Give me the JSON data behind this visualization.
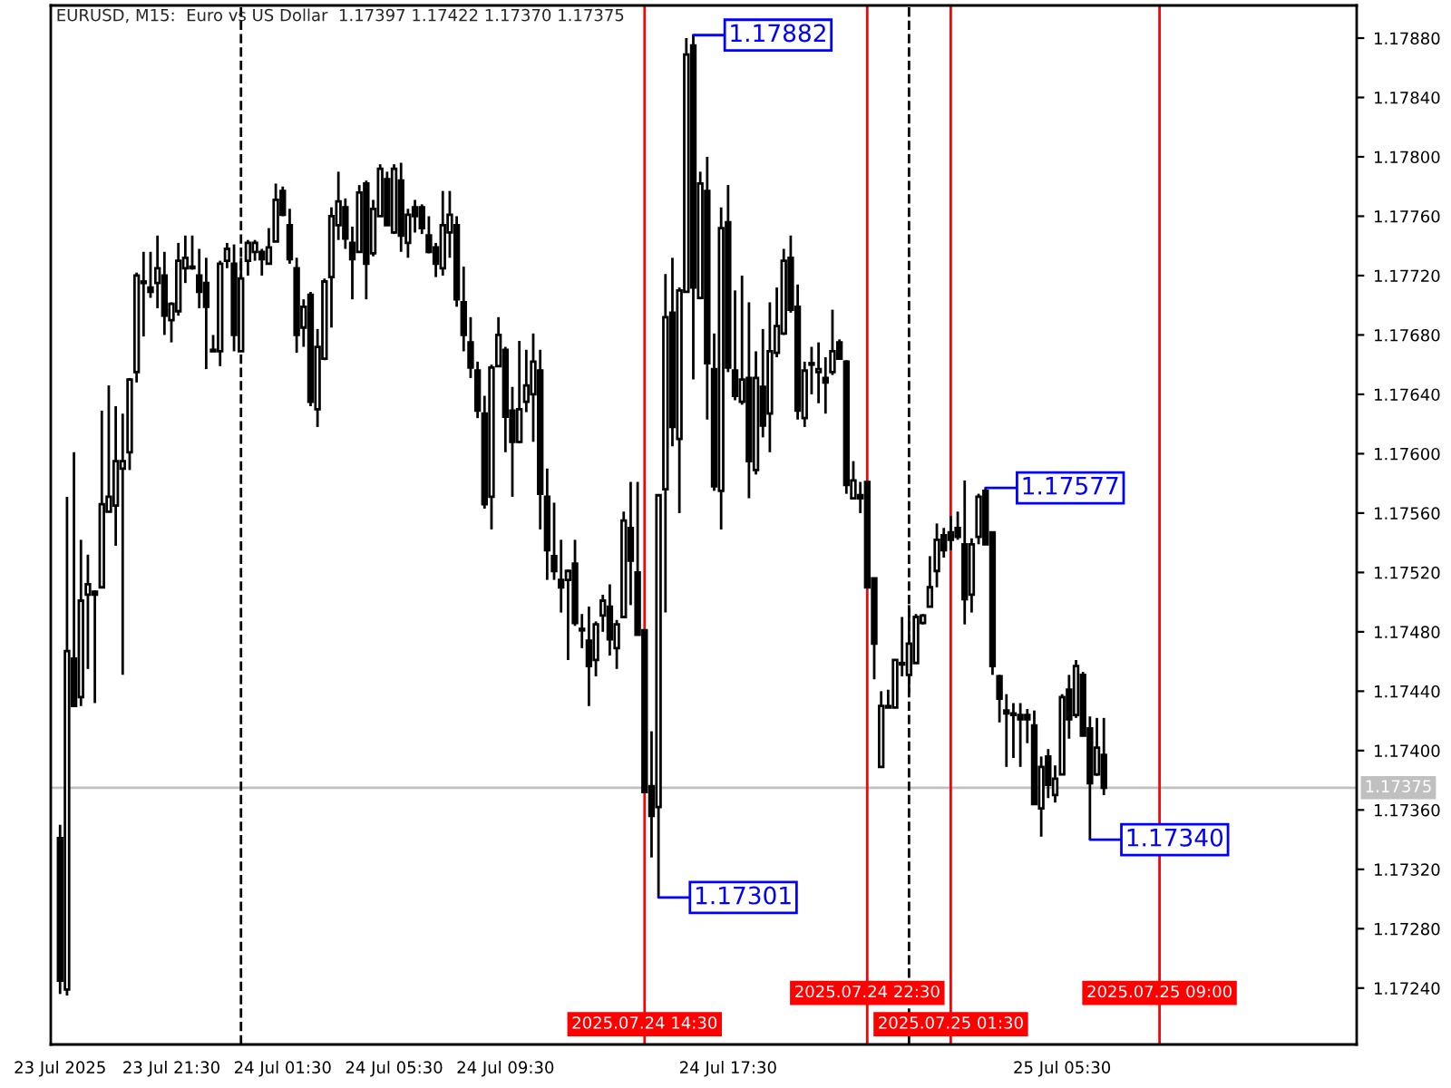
{
  "chart_data": {
    "type": "candlestick",
    "title": "EURUSD, M15:  Euro vs US Dollar  1.17397 1.17422 1.17370 1.17375",
    "color": "#000000",
    "x": [
      "2025-07-23T17:30",
      "2025-07-23T17:45",
      "2025-07-23T18:00",
      "2025-07-23T18:15",
      "2025-07-23T18:30",
      "2025-07-23T18:45",
      "2025-07-23T19:00",
      "2025-07-23T19:15",
      "2025-07-23T19:30",
      "2025-07-23T19:45",
      "2025-07-23T20:00",
      "2025-07-23T20:15",
      "2025-07-23T20:30",
      "2025-07-23T20:45",
      "2025-07-23T21:00",
      "2025-07-23T21:15",
      "2025-07-23T21:30",
      "2025-07-23T21:45",
      "2025-07-23T22:00",
      "2025-07-23T22:15",
      "2025-07-23T22:30",
      "2025-07-23T22:45",
      "2025-07-23T23:00",
      "2025-07-23T23:15",
      "2025-07-23T23:30",
      "2025-07-23T23:45",
      "2025-07-24T00:00",
      "2025-07-24T00:15",
      "2025-07-24T00:30",
      "2025-07-24T00:45",
      "2025-07-24T01:00",
      "2025-07-24T01:15",
      "2025-07-24T01:30",
      "2025-07-24T01:45",
      "2025-07-24T02:00",
      "2025-07-24T02:15",
      "2025-07-24T02:30",
      "2025-07-24T02:45",
      "2025-07-24T03:00",
      "2025-07-24T03:15",
      "2025-07-24T03:30",
      "2025-07-24T03:45",
      "2025-07-24T04:00",
      "2025-07-24T04:15",
      "2025-07-24T04:30",
      "2025-07-24T04:45",
      "2025-07-24T05:00",
      "2025-07-24T05:15",
      "2025-07-24T05:30",
      "2025-07-24T05:45",
      "2025-07-24T06:00",
      "2025-07-24T06:15",
      "2025-07-24T06:30",
      "2025-07-24T06:45",
      "2025-07-24T07:00",
      "2025-07-24T07:15",
      "2025-07-24T07:30",
      "2025-07-24T07:45",
      "2025-07-24T08:00",
      "2025-07-24T08:15",
      "2025-07-24T08:30",
      "2025-07-24T08:45",
      "2025-07-24T09:00",
      "2025-07-24T09:15",
      "2025-07-24T09:30",
      "2025-07-24T09:45",
      "2025-07-24T10:00",
      "2025-07-24T10:15",
      "2025-07-24T10:30",
      "2025-07-24T10:45",
      "2025-07-24T11:00",
      "2025-07-24T11:15",
      "2025-07-24T11:30",
      "2025-07-24T11:45",
      "2025-07-24T12:00",
      "2025-07-24T12:15",
      "2025-07-24T12:30",
      "2025-07-24T12:45",
      "2025-07-24T13:00",
      "2025-07-24T13:15",
      "2025-07-24T13:30",
      "2025-07-24T13:45",
      "2025-07-24T14:00",
      "2025-07-24T14:15",
      "2025-07-24T14:30",
      "2025-07-24T14:45",
      "2025-07-24T15:00",
      "2025-07-24T15:15",
      "2025-07-24T15:30",
      "2025-07-24T15:45",
      "2025-07-24T16:00",
      "2025-07-24T16:15",
      "2025-07-24T16:30",
      "2025-07-24T16:45",
      "2025-07-24T17:00",
      "2025-07-24T17:15",
      "2025-07-24T17:30",
      "2025-07-24T17:45",
      "2025-07-24T18:00",
      "2025-07-24T18:15",
      "2025-07-24T18:30",
      "2025-07-24T18:45",
      "2025-07-24T19:00",
      "2025-07-24T19:15",
      "2025-07-24T19:30",
      "2025-07-24T19:45",
      "2025-07-24T20:00",
      "2025-07-24T20:15",
      "2025-07-24T20:30",
      "2025-07-24T20:45",
      "2025-07-24T21:00",
      "2025-07-24T21:15",
      "2025-07-24T21:30",
      "2025-07-24T21:45",
      "2025-07-24T22:00",
      "2025-07-24T22:15",
      "2025-07-24T22:30",
      "2025-07-24T22:45",
      "2025-07-24T23:00",
      "2025-07-24T23:15",
      "2025-07-24T23:30",
      "2025-07-24T23:45",
      "2025-07-25T00:00",
      "2025-07-25T00:15",
      "2025-07-25T00:30",
      "2025-07-25T00:45",
      "2025-07-25T01:00",
      "2025-07-25T01:15",
      "2025-07-25T01:30",
      "2025-07-25T01:45",
      "2025-07-25T02:00",
      "2025-07-25T02:15",
      "2025-07-25T02:30",
      "2025-07-25T02:45",
      "2025-07-25T03:00",
      "2025-07-25T03:15",
      "2025-07-25T03:30",
      "2025-07-25T03:45",
      "2025-07-25T04:00",
      "2025-07-25T04:15",
      "2025-07-25T04:30",
      "2025-07-25T04:45",
      "2025-07-25T05:00",
      "2025-07-25T05:15",
      "2025-07-25T05:30",
      "2025-07-25T05:45",
      "2025-07-25T06:00",
      "2025-07-25T06:15",
      "2025-07-25T06:30",
      "2025-07-25T06:45",
      "2025-07-25T07:00"
    ],
    "ohlc": [
      [
        1.17341,
        1.1735,
        1.17236,
        1.17245
      ],
      [
        1.17239,
        1.17571,
        1.17235,
        1.17467
      ],
      [
        1.17462,
        1.17601,
        1.1743,
        1.1743
      ],
      [
        1.17436,
        1.17542,
        1.1743,
        1.17501
      ],
      [
        1.17505,
        1.17532,
        1.17455,
        1.17512
      ],
      [
        1.17507,
        1.17508,
        1.17432,
        1.17505
      ],
      [
        1.1751,
        1.17629,
        1.1751,
        1.17566
      ],
      [
        1.17561,
        1.17646,
        1.17561,
        1.17571
      ],
      [
        1.17565,
        1.17632,
        1.17538,
        1.17595
      ],
      [
        1.1759,
        1.17627,
        1.17451,
        1.17595
      ],
      [
        1.17601,
        1.17651,
        1.17589,
        1.1765
      ],
      [
        1.17655,
        1.17722,
        1.17648,
        1.1772
      ],
      [
        1.17716,
        1.17736,
        1.17679,
        1.17715
      ],
      [
        1.17712,
        1.17736,
        1.17705,
        1.17709
      ],
      [
        1.17715,
        1.17747,
        1.17698,
        1.17725
      ],
      [
        1.1772,
        1.17736,
        1.1768,
        1.17693
      ],
      [
        1.1769,
        1.17702,
        1.17675,
        1.17701
      ],
      [
        1.17696,
        1.17742,
        1.17693,
        1.1773
      ],
      [
        1.17725,
        1.17747,
        1.17715,
        1.17732
      ],
      [
        1.17725,
        1.17747,
        1.17724,
        1.17726
      ],
      [
        1.1772,
        1.17738,
        1.17698,
        1.17709
      ],
      [
        1.17715,
        1.17732,
        1.17657,
        1.17699
      ],
      [
        1.1767,
        1.1768,
        1.17669,
        1.17669
      ],
      [
        1.17669,
        1.1773,
        1.17659,
        1.17728
      ],
      [
        1.1773,
        1.17742,
        1.17725,
        1.17738
      ],
      [
        1.17728,
        1.17741,
        1.17669,
        1.1768
      ],
      [
        1.17669,
        1.17732,
        1.17669,
        1.17718
      ],
      [
        1.1773,
        1.17744,
        1.1772,
        1.17742
      ],
      [
        1.17736,
        1.17744,
        1.1773,
        1.17742
      ],
      [
        1.17736,
        1.17738,
        1.1772,
        1.17731
      ],
      [
        1.17728,
        1.17752,
        1.17728,
        1.17739
      ],
      [
        1.17743,
        1.17782,
        1.17743,
        1.17771
      ],
      [
        1.17777,
        1.1778,
        1.1776,
        1.17761
      ],
      [
        1.17754,
        1.17765,
        1.17728,
        1.17731
      ],
      [
        1.17725,
        1.17732,
        1.17668,
        1.1768
      ],
      [
        1.17685,
        1.17704,
        1.17672,
        1.17699
      ],
      [
        1.17707,
        1.17709,
        1.17632,
        1.17635
      ],
      [
        1.1763,
        1.17684,
        1.17618,
        1.17672
      ],
      [
        1.17664,
        1.17718,
        1.17663,
        1.17716
      ],
      [
        1.17719,
        1.17766,
        1.17685,
        1.1776
      ],
      [
        1.17754,
        1.1779,
        1.17744,
        1.1777
      ],
      [
        1.17766,
        1.17772,
        1.17738,
        1.17745
      ],
      [
        1.17742,
        1.17753,
        1.17704,
        1.17731
      ],
      [
        1.17736,
        1.17781,
        1.17736,
        1.17776
      ],
      [
        1.17782,
        1.17784,
        1.17704,
        1.17728
      ],
      [
        1.17735,
        1.17771,
        1.17733,
        1.17765
      ],
      [
        1.1776,
        1.17795,
        1.1776,
        1.17792
      ],
      [
        1.17785,
        1.1779,
        1.17754,
        1.17754
      ],
      [
        1.17749,
        1.17795,
        1.17748,
        1.17792
      ],
      [
        1.17784,
        1.17796,
        1.17736,
        1.17747
      ],
      [
        1.17742,
        1.17765,
        1.17732,
        1.17761
      ],
      [
        1.17766,
        1.17771,
        1.17749,
        1.1776
      ],
      [
        1.17766,
        1.17768,
        1.17748,
        1.17752
      ],
      [
        1.17747,
        1.1776,
        1.17735,
        1.17736
      ],
      [
        1.17739,
        1.17742,
        1.17719,
        1.17728
      ],
      [
        1.17725,
        1.17777,
        1.1772,
        1.17754
      ],
      [
        1.17749,
        1.17777,
        1.17732,
        1.17761
      ],
      [
        1.17754,
        1.1776,
        1.17699,
        1.17704
      ],
      [
        1.17702,
        1.17726,
        1.17669,
        1.1768
      ],
      [
        1.17675,
        1.17692,
        1.17651,
        1.17658
      ],
      [
        1.17656,
        1.17662,
        1.17624,
        1.17629
      ],
      [
        1.17627,
        1.17639,
        1.17563,
        1.17566
      ],
      [
        1.17571,
        1.1766,
        1.17549,
        1.17658
      ],
      [
        1.17659,
        1.17692,
        1.17659,
        1.1768
      ],
      [
        1.1767,
        1.17672,
        1.17601,
        1.17625
      ],
      [
        1.17629,
        1.17645,
        1.17571,
        1.17608
      ],
      [
        1.17608,
        1.17676,
        1.17607,
        1.1763
      ],
      [
        1.17635,
        1.1767,
        1.17628,
        1.17646
      ],
      [
        1.1764,
        1.17681,
        1.17608,
        1.17662
      ],
      [
        1.17656,
        1.1767,
        1.17549,
        1.17573
      ],
      [
        1.17571,
        1.1759,
        1.17515,
        1.17535
      ],
      [
        1.17531,
        1.17567,
        1.17515,
        1.17521
      ],
      [
        1.17515,
        1.17542,
        1.17493,
        1.1751
      ],
      [
        1.17515,
        1.17522,
        1.17461,
        1.17521
      ],
      [
        1.17526,
        1.17542,
        1.17484,
        1.17486
      ],
      [
        1.17482,
        1.17492,
        1.17469,
        1.17481
      ],
      [
        1.17474,
        1.17497,
        1.1743,
        1.17457
      ],
      [
        1.17461,
        1.17487,
        1.1745,
        1.17485
      ],
      [
        1.17491,
        1.17505,
        1.1748,
        1.17501
      ],
      [
        1.17497,
        1.17512,
        1.17464,
        1.17475
      ],
      [
        1.17469,
        1.17488,
        1.17455,
        1.17485
      ],
      [
        1.1749,
        1.17561,
        1.1749,
        1.17555
      ],
      [
        1.1755,
        1.17581,
        1.17498,
        1.17528
      ],
      [
        1.1752,
        1.17581,
        1.17478,
        1.17478
      ],
      [
        1.17481,
        1.17481,
        1.17372,
        1.17372
      ],
      [
        1.17376,
        1.17413,
        1.17328,
        1.17356
      ],
      [
        1.17362,
        1.17572,
        1.17301,
        1.17572
      ],
      [
        1.17576,
        1.17721,
        1.17493,
        1.17692
      ],
      [
        1.17695,
        1.17732,
        1.17605,
        1.17618
      ],
      [
        1.1761,
        1.17712,
        1.1756,
        1.1771
      ],
      [
        1.17709,
        1.1788,
        1.17709,
        1.17869
      ],
      [
        1.17875,
        1.17882,
        1.1765,
        1.17712
      ],
      [
        1.17705,
        1.1779,
        1.17704,
        1.17782
      ],
      [
        1.17777,
        1.178,
        1.17623,
        1.17661
      ],
      [
        1.17657,
        1.17681,
        1.17575,
        1.17578
      ],
      [
        1.17575,
        1.17766,
        1.17549,
        1.17752
      ],
      [
        1.17756,
        1.17781,
        1.17655,
        1.17658
      ],
      [
        1.17656,
        1.1771,
        1.17636,
        1.17639
      ],
      [
        1.17635,
        1.1772,
        1.17633,
        1.1765
      ],
      [
        1.17651,
        1.17702,
        1.1757,
        1.17595
      ],
      [
        1.17589,
        1.17669,
        1.17586,
        1.17651
      ],
      [
        1.17645,
        1.17684,
        1.17611,
        1.17619
      ],
      [
        1.17627,
        1.17702,
        1.17601,
        1.17669
      ],
      [
        1.17668,
        1.17712,
        1.17665,
        1.17686
      ],
      [
        1.17681,
        1.17738,
        1.1768,
        1.1773
      ],
      [
        1.17732,
        1.17747,
        1.17695,
        1.17697
      ],
      [
        1.17699,
        1.17714,
        1.17623,
        1.17629
      ],
      [
        1.17624,
        1.17662,
        1.17618,
        1.17656
      ],
      [
        1.17661,
        1.17672,
        1.1764,
        1.1766
      ],
      [
        1.17655,
        1.17675,
        1.17634,
        1.17657
      ],
      [
        1.17651,
        1.17665,
        1.17627,
        1.17648
      ],
      [
        1.17655,
        1.17697,
        1.17653,
        1.17669
      ],
      [
        1.17675,
        1.17677,
        1.17664,
        1.17664
      ],
      [
        1.17662,
        1.17663,
        1.17573,
        1.17579
      ],
      [
        1.1757,
        1.17595,
        1.1757,
        1.17582
      ],
      [
        1.17572,
        1.17581,
        1.1756,
        1.1757
      ],
      [
        1.17581,
        1.17581,
        1.1751,
        1.1751
      ],
      [
        1.17516,
        1.17516,
        1.17448,
        1.17472
      ],
      [
        1.17389,
        1.1744,
        1.17389,
        1.1743
      ],
      [
        1.1743,
        1.17441,
        1.17429,
        1.17429
      ],
      [
        1.17429,
        1.17461,
        1.17429,
        1.17461
      ],
      [
        1.17459,
        1.1749,
        1.1745,
        1.17458
      ],
      [
        1.17451,
        1.17498,
        1.17439,
        1.17472
      ],
      [
        1.17459,
        1.17492,
        1.17459,
        1.1749
      ],
      [
        1.17486,
        1.17492,
        1.17485,
        1.17491
      ],
      [
        1.17497,
        1.17531,
        1.17497,
        1.1751
      ],
      [
        1.17521,
        1.17553,
        1.1751,
        1.17542
      ],
      [
        1.17545,
        1.1755,
        1.1753,
        1.17535
      ],
      [
        1.17547,
        1.17558,
        1.17535,
        1.17542
      ],
      [
        1.1755,
        1.17561,
        1.17542,
        1.17544
      ],
      [
        1.17539,
        1.17582,
        1.17485,
        1.17502
      ],
      [
        1.17505,
        1.17543,
        1.17493,
        1.17539
      ],
      [
        1.17544,
        1.17573,
        1.17539,
        1.17571
      ],
      [
        1.17575,
        1.17577,
        1.17539,
        1.17539
      ],
      [
        1.17547,
        1.17547,
        1.17451,
        1.17457
      ],
      [
        1.1745,
        1.17451,
        1.17419,
        1.17435
      ],
      [
        1.17427,
        1.17438,
        1.17389,
        1.17425
      ],
      [
        1.17424,
        1.17432,
        1.17395,
        1.17425
      ],
      [
        1.17424,
        1.17432,
        1.17389,
        1.17421
      ],
      [
        1.17424,
        1.17428,
        1.17405,
        1.17421
      ],
      [
        1.17417,
        1.17427,
        1.17364,
        1.17364
      ],
      [
        1.17361,
        1.17396,
        1.17342,
        1.17389
      ],
      [
        1.17396,
        1.17401,
        1.17368,
        1.17377
      ],
      [
        1.1737,
        1.1739,
        1.17365,
        1.17381
      ],
      [
        1.17384,
        1.17438,
        1.17384,
        1.17436
      ],
      [
        1.17441,
        1.17451,
        1.17408,
        1.17421
      ],
      [
        1.17424,
        1.17461,
        1.17422,
        1.17457
      ],
      [
        1.17451,
        1.17453,
        1.1741,
        1.1741
      ],
      [
        1.17415,
        1.17423,
        1.1734,
        1.17378
      ],
      [
        1.17384,
        1.17422,
        1.17383,
        1.17402
      ],
      [
        1.17397,
        1.17422,
        1.1737,
        1.17375
      ]
    ],
    "xlim": [
      "2025-07-23T17:10",
      "2025-07-25T16:05"
    ],
    "xticks": [
      {
        "value": "2025-07-23T17:30",
        "label": "23 Jul 2025"
      },
      {
        "value": "2025-07-23T21:30",
        "label": "23 Jul 21:30"
      },
      {
        "value": "2025-07-24T01:30",
        "label": "24 Jul 01:30"
      },
      {
        "value": "2025-07-24T05:30",
        "label": "24 Jul 05:30"
      },
      {
        "value": "2025-07-24T09:30",
        "label": "24 Jul 09:30"
      },
      {
        "value": "2025-07-24T17:30",
        "label": "24 Jul 17:30"
      },
      {
        "value": "2025-07-25T05:30",
        "label": "25 Jul 05:30"
      }
    ],
    "ylim": [
      1.17202,
      1.17902
    ],
    "yticks": [
      {
        "value": 1.1724,
        "label": "1.17240"
      },
      {
        "value": 1.1728,
        "label": "1.17280"
      },
      {
        "value": 1.1732,
        "label": "1.17320"
      },
      {
        "value": 1.1736,
        "label": "1.17360"
      },
      {
        "value": 1.174,
        "label": "1.17400"
      },
      {
        "value": 1.1744,
        "label": "1.17440"
      },
      {
        "value": 1.1748,
        "label": "1.17480"
      },
      {
        "value": 1.1752,
        "label": "1.17520"
      },
      {
        "value": 1.1756,
        "label": "1.17560"
      },
      {
        "value": 1.176,
        "label": "1.17600"
      },
      {
        "value": 1.1764,
        "label": "1.17640"
      },
      {
        "value": 1.1768,
        "label": "1.17680"
      },
      {
        "value": 1.1772,
        "label": "1.17720"
      },
      {
        "value": 1.1776,
        "label": "1.17760"
      },
      {
        "value": 1.178,
        "label": "1.17800"
      },
      {
        "value": 1.1784,
        "label": "1.17840"
      },
      {
        "value": 1.1788,
        "label": "1.17880"
      }
    ],
    "ref_lines": [
      {
        "axis": "x",
        "value": "2025-07-24T00:00",
        "color": "#000000",
        "line_style": "dashed"
      },
      {
        "axis": "x",
        "value": "2025-07-25T00:00",
        "color": "#000000",
        "line_style": "dashed"
      },
      {
        "axis": "x",
        "value": "2025-07-24T14:30",
        "label": "2025.07.24 14:30",
        "color": "#ff0000"
      },
      {
        "axis": "x",
        "value": "2025-07-24T22:30",
        "label": "2025.07.24 22:30",
        "color": "#ff0000"
      },
      {
        "axis": "x",
        "value": "2025-07-25T01:30",
        "label": "2025.07.25 01:30",
        "color": "#ff0000"
      },
      {
        "axis": "x",
        "value": "2025-07-25T09:00",
        "label": "2025.07.25 09:00",
        "color": "#ff0000"
      },
      {
        "axis": "y",
        "value": 1.17375,
        "label": "1.17375",
        "color": "#c0c0c0"
      }
    ],
    "annotations": [
      {
        "text": "1.17882",
        "x": "2025-07-24T16:15",
        "y": 1.17882
      },
      {
        "text": "1.17301",
        "x": "2025-07-24T15:00",
        "y": 1.17301
      },
      {
        "text": "1.17577",
        "x": "2025-07-25T02:45",
        "y": 1.17577
      },
      {
        "text": "1.17340",
        "x": "2025-07-25T06:30",
        "y": 1.1734
      }
    ]
  }
}
